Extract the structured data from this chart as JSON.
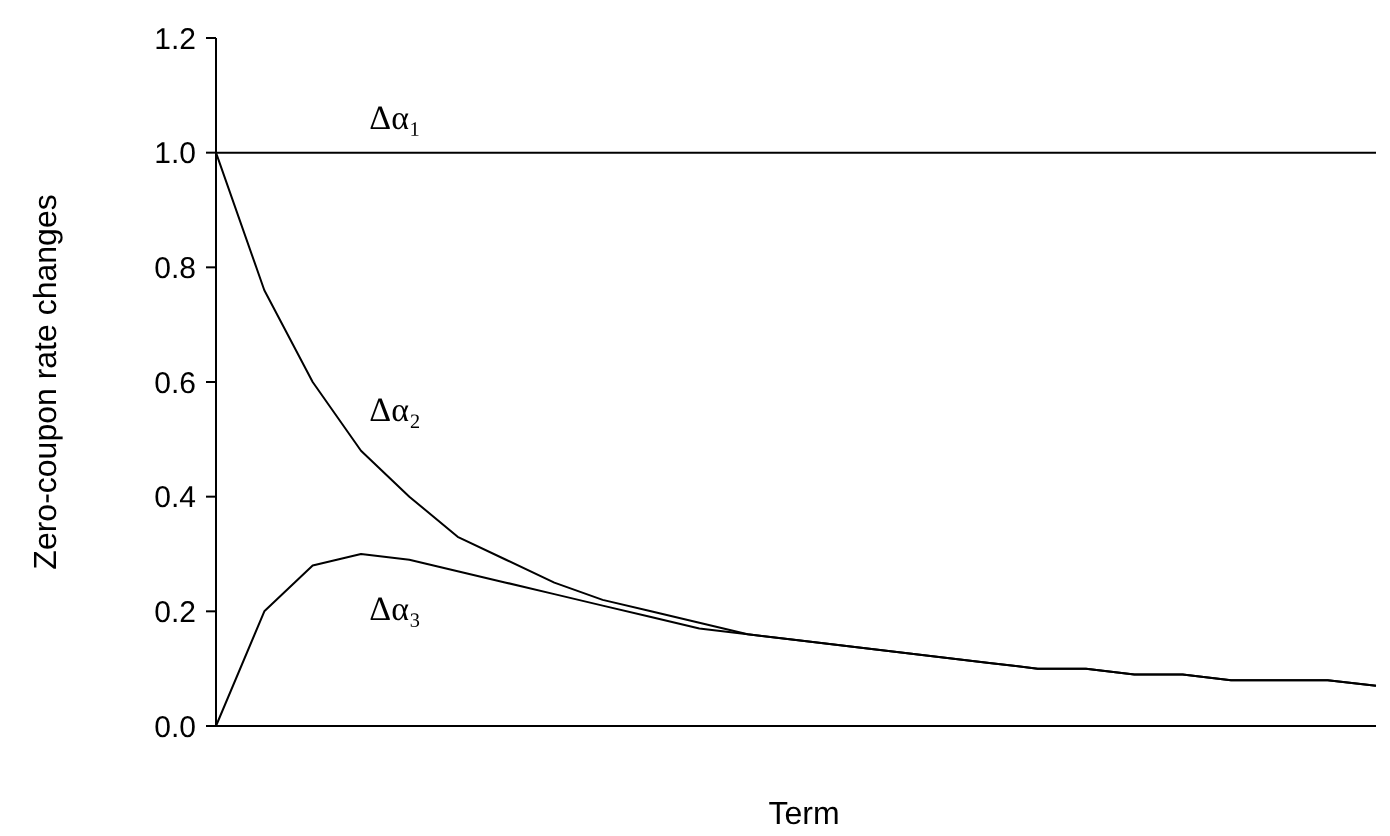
{
  "chart_data": {
    "type": "line",
    "xlabel": "Term",
    "ylabel": "Zero-coupon rate changes",
    "categories": [
      null,
      null,
      null,
      null,
      null,
      null,
      null,
      null,
      null,
      null,
      null,
      null,
      null,
      null,
      null,
      null,
      null,
      null,
      null,
      null,
      null,
      null,
      null,
      null,
      null
    ],
    "series": [
      {
        "name": "Δα₁",
        "color": "#000000",
        "values": [
          1,
          1,
          1,
          1,
          1,
          1,
          1,
          1,
          1,
          1,
          1,
          1,
          1,
          1,
          1,
          1,
          1,
          1,
          1,
          1,
          1,
          1,
          1,
          1,
          1
        ]
      },
      {
        "name": "Δα₂",
        "color": "#000000",
        "values": [
          1,
          0.76,
          0.6,
          0.48,
          0.4,
          0.33,
          0.29,
          0.25,
          0.22,
          0.2,
          0.18,
          0.16,
          0.15,
          0.14,
          0.13,
          0.12,
          0.11,
          0.1,
          0.1,
          0.09,
          0.09,
          0.08,
          0.08,
          0.08,
          0.07
        ]
      },
      {
        "name": "Δα₃",
        "color": "#000000",
        "values": [
          0,
          0.2,
          0.28,
          0.3,
          0.29,
          0.27,
          0.25,
          0.23,
          0.21,
          0.19,
          0.17,
          0.16,
          0.15,
          0.14,
          0.13,
          0.12,
          0.11,
          0.1,
          0.1,
          0.09,
          0.09,
          0.08,
          0.08,
          0.08,
          0.07
        ]
      }
    ],
    "ylim": [
      0,
      1.2
    ],
    "yticks": [
      {
        "value": 0,
        "label": "0.0"
      },
      {
        "value": 0.2,
        "label": "0.2"
      },
      {
        "value": 0.4,
        "label": "0.4"
      },
      {
        "value": 0.6,
        "label": "0.6"
      },
      {
        "value": 0.8,
        "label": "0.8"
      },
      {
        "value": 1,
        "label": "1.0"
      },
      {
        "value": 1.2,
        "label": "1.2"
      }
    ],
    "tick_labels": "y",
    "line_style": "solid",
    "marker": "none"
  }
}
